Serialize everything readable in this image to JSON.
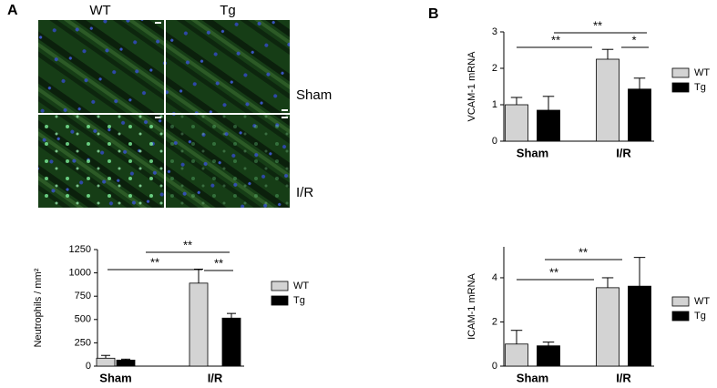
{
  "figure": {
    "panel_a_label": "A",
    "panel_b_label": "B",
    "image_columns": [
      "WT",
      "Tg"
    ],
    "image_rows": [
      "Sham",
      "I/R"
    ]
  },
  "chart_data": [
    {
      "type": "bar",
      "ylabel": "Neutrophils / mm²",
      "categories": [
        "Sham",
        "I/R"
      ],
      "series": [
        {
          "name": "WT",
          "color": "#d3d3d3",
          "values": [
            85,
            890
          ],
          "errors": [
            30,
            150
          ]
        },
        {
          "name": "Tg",
          "color": "#000000",
          "values": [
            65,
            515
          ],
          "errors": [
            10,
            50
          ]
        }
      ],
      "ylim": [
        0,
        1250
      ],
      "yticks": [
        0,
        250,
        500,
        750,
        1000,
        1250
      ],
      "annotations": [
        "**",
        "**",
        "**"
      ]
    },
    {
      "type": "bar",
      "ylabel": "VCAM-1 mRNA",
      "categories": [
        "Sham",
        "I/R"
      ],
      "series": [
        {
          "name": "WT",
          "color": "#d3d3d3",
          "values": [
            1.0,
            2.25
          ],
          "errors": [
            0.2,
            0.27
          ]
        },
        {
          "name": "Tg",
          "color": "#000000",
          "values": [
            0.85,
            1.43
          ],
          "errors": [
            0.38,
            0.3
          ]
        }
      ],
      "ylim": [
        0,
        3
      ],
      "yticks": [
        0,
        1,
        2,
        3
      ],
      "annotations": [
        "**",
        "*",
        "**"
      ]
    },
    {
      "type": "bar",
      "ylabel": "ICAM-1 mRNA",
      "categories": [
        "Sham",
        "I/R"
      ],
      "series": [
        {
          "name": "WT",
          "color": "#d3d3d3",
          "values": [
            1.0,
            3.55
          ],
          "errors": [
            0.62,
            0.45
          ]
        },
        {
          "name": "Tg",
          "color": "#000000",
          "values": [
            0.92,
            3.62
          ],
          "errors": [
            0.17,
            1.3
          ]
        }
      ],
      "ylim": [
        0,
        5.4
      ],
      "yticks": [
        0,
        2,
        4
      ],
      "annotations": [
        "**",
        "**"
      ]
    }
  ]
}
